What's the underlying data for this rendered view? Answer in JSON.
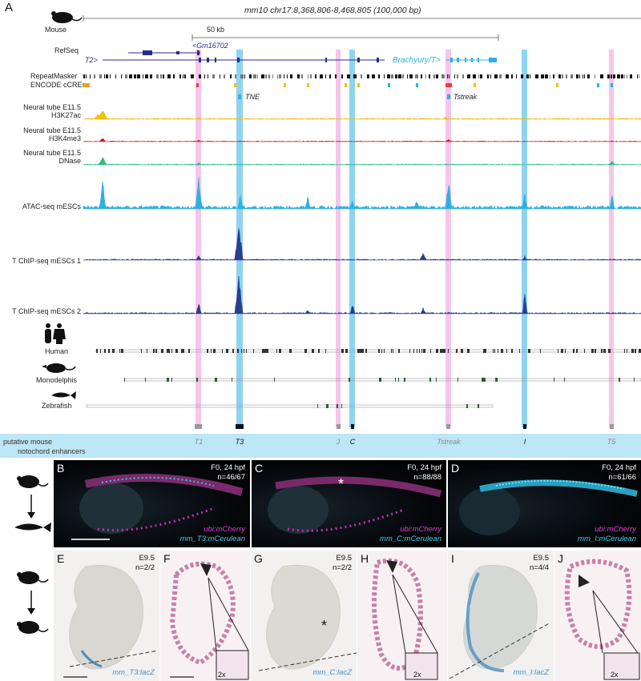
{
  "figure": {
    "panel_a": "A",
    "mouse_label": "Mouse",
    "coordinates": "mm10 chr17:8,368,806-8,468,805 (100,000 bp)",
    "scale": "50 kb",
    "tracks": {
      "refseq": "RefSeq",
      "gm16702": "<Gm16702",
      "t2": "T2>",
      "brachyury": "Brachyury/T>",
      "repeatmasker": "RepeatMasker",
      "encode": "ENCODE cCREs",
      "tne": "TNE",
      "tstreak_box": "Tstreak",
      "h3k27ac_1": "Neural tube E11.5",
      "h3k27ac_2": "H3K27ac",
      "h3k4me3_1": "Neural tube E11.5",
      "h3k4me3_2": "H3K4me3",
      "dnase_1": "Neural tube E11.5",
      "dnase_2": "DNase",
      "atac": "ATAC-seq mESCs",
      "chip1": "T ChIP-seq mESCs 1",
      "chip2": "T ChIP-seq mESCs 2",
      "human": "Human",
      "monodelphis": "Monodelphis",
      "zebrafish": "Zebrafish"
    },
    "enhancer_band": "putative mouse notochord enhancers",
    "enhancers": [
      {
        "name": "T1",
        "active": false
      },
      {
        "name": "T3",
        "active": true
      },
      {
        "name": "J",
        "active": false
      },
      {
        "name": "C",
        "active": true
      },
      {
        "name": "Tstreak",
        "active": false
      },
      {
        "name": "I",
        "active": true
      },
      {
        "name": "T5",
        "active": false
      }
    ],
    "colors": {
      "pink": "#f5c6ea",
      "cyan": "#8fd3f0",
      "band": "#bde6f6",
      "h3k27ac": "#f0c010",
      "h3k4me3": "#d62020",
      "dnase": "#30c080",
      "atac": "#2fb0e0",
      "chip": "#2a3f8f"
    },
    "zebrafish_panels": [
      {
        "letter": "B",
        "stage": "F0, 24 hpf",
        "n": "n=46/67",
        "line1": "ubi:mCherry",
        "line2": "mm_T3:mCerulean"
      },
      {
        "letter": "C",
        "stage": "F0, 24 hpf",
        "n": "n=88/88",
        "line1": "ubi:mCherry",
        "line2": "mm_C:mCerulean"
      },
      {
        "letter": "D",
        "stage": "F0, 24 hpf",
        "n": "n=61/66",
        "line1": "ubi:mCherry",
        "line2": "mm_I:mCerulean"
      }
    ],
    "mouse_panels": [
      {
        "letter": "E",
        "stage": "E9.5",
        "n": "n=2/2",
        "line": "mm_T3:lacZ"
      },
      {
        "letter": "F",
        "zoom": "2x"
      },
      {
        "letter": "G",
        "stage": "E9.5",
        "n": "n=2/2",
        "line": "mm_C:lacZ"
      },
      {
        "letter": "H",
        "zoom": "2x"
      },
      {
        "letter": "I",
        "stage": "E9.5",
        "n": "n=4/4",
        "line": "mm_I:lacZ"
      },
      {
        "letter": "J",
        "zoom": "2x"
      }
    ],
    "asterisk": "*"
  }
}
